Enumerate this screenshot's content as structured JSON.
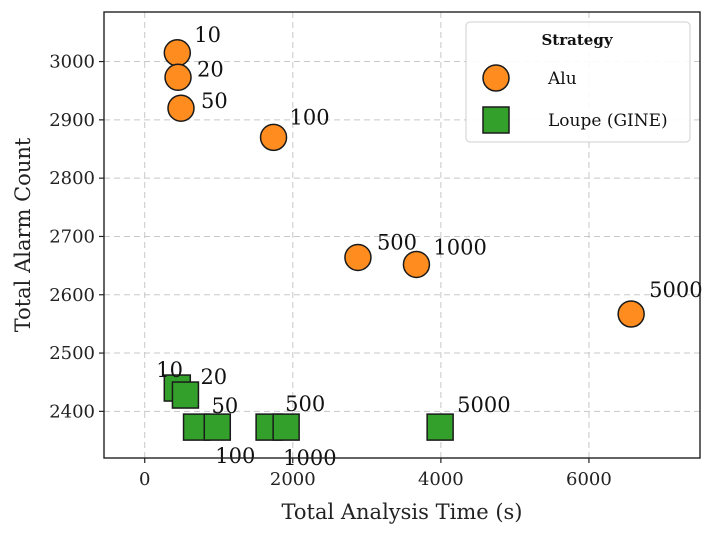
{
  "chart_data": {
    "type": "scatter",
    "xlabel": "Total Analysis Time (s)",
    "ylabel": "Total Alarm Count",
    "xlim": [
      -550,
      7500
    ],
    "ylim": [
      2320,
      3085
    ],
    "xticks": [
      0,
      2000,
      4000,
      6000
    ],
    "yticks": [
      2400,
      2500,
      2600,
      2700,
      2800,
      2900,
      3000
    ],
    "grid": true,
    "legend": {
      "title": "Strategy",
      "placement": "top-right",
      "entries": [
        "Alu",
        "Loupe (GINE)"
      ]
    },
    "colors": {
      "Alu": "#ff8c1f",
      "Loupe (GINE)": "#33a02c"
    },
    "series": [
      {
        "name": "Alu",
        "marker": "circle",
        "points": [
          {
            "x": 440,
            "y": 3015,
            "label": "10"
          },
          {
            "x": 450,
            "y": 2973,
            "label": "20"
          },
          {
            "x": 490,
            "y": 2920,
            "label": "50"
          },
          {
            "x": 1740,
            "y": 2870,
            "label": "100"
          },
          {
            "x": 2880,
            "y": 2664,
            "label": "500"
          },
          {
            "x": 3670,
            "y": 2652,
            "label": "1000"
          },
          {
            "x": 6570,
            "y": 2567,
            "label": "5000"
          }
        ]
      },
      {
        "name": "Loupe (GINE)",
        "marker": "square",
        "points": [
          {
            "x": 440,
            "y": 2440,
            "label": "10"
          },
          {
            "x": 550,
            "y": 2428,
            "label": "20"
          },
          {
            "x": 700,
            "y": 2373,
            "label": "50"
          },
          {
            "x": 980,
            "y": 2373,
            "label": "100"
          },
          {
            "x": 1680,
            "y": 2373,
            "label": "500"
          },
          {
            "x": 1910,
            "y": 2373,
            "label": "1000"
          },
          {
            "x": 3990,
            "y": 2373,
            "label": "5000"
          }
        ]
      }
    ]
  }
}
